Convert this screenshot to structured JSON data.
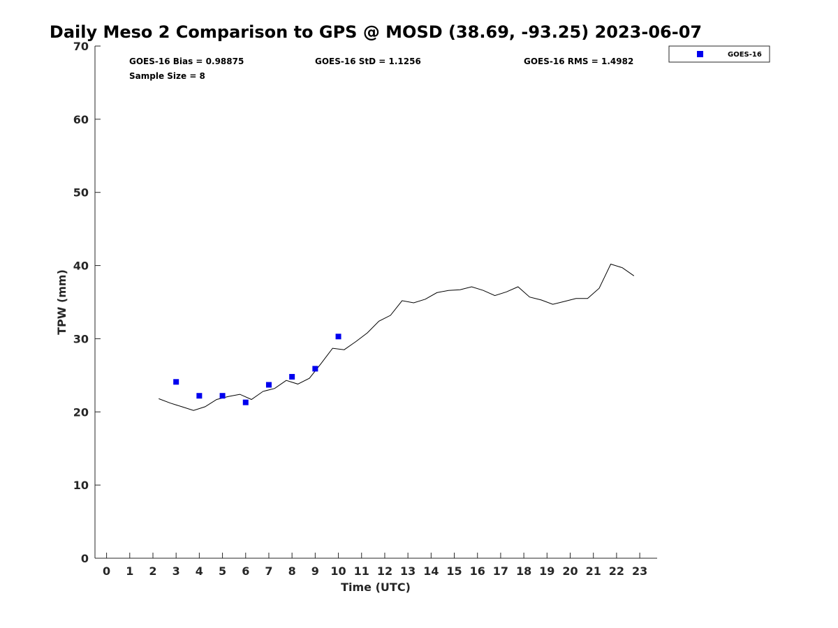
{
  "chart_data": {
    "type": "scatter",
    "title": "Daily Meso 2 Comparison to GPS @ MOSD (38.69, -93.25) 2023-06-07",
    "xlabel": "Time (UTC)",
    "ylabel": "TPW (mm)",
    "xlim": [
      -0.5,
      23.75
    ],
    "ylim": [
      0,
      70
    ],
    "x_ticks": [
      "0",
      "1",
      "2",
      "3",
      "4",
      "5",
      "6",
      "7",
      "8",
      "9",
      "10",
      "11",
      "12",
      "13",
      "14",
      "15",
      "16",
      "17",
      "18",
      "19",
      "20",
      "21",
      "22",
      "23"
    ],
    "y_ticks": [
      "0",
      "10",
      "20",
      "30",
      "40",
      "50",
      "60",
      "70"
    ],
    "grid": false,
    "legend_position": "top-right",
    "stats": {
      "bias": "GOES-16 Bias = 0.98875",
      "std": "GOES-16 StD = 1.1256",
      "rms": "GOES-16 RMS = 1.4982",
      "sample": "Sample Size = 8"
    },
    "series": [
      {
        "name": "GOES-16",
        "kind": "scatter",
        "marker": "square",
        "color": "#0000ee",
        "x": [
          3,
          4,
          5,
          6,
          7,
          8,
          9,
          10
        ],
        "y": [
          24.1,
          22.2,
          22.2,
          21.3,
          23.7,
          24.8,
          25.9,
          30.3
        ]
      },
      {
        "kind": "line",
        "color": "#000000",
        "x": [
          2.25,
          2.75,
          3.25,
          3.75,
          4.25,
          4.75,
          5.25,
          5.75,
          6.25,
          6.75,
          7.25,
          7.75,
          8.25,
          8.75,
          9.25,
          9.75,
          10.25,
          10.75,
          11.25,
          11.75,
          12.25,
          12.75,
          13.25,
          13.75,
          14.25,
          14.75,
          15.25,
          15.75,
          16.25,
          16.75,
          17.25,
          17.75,
          18.25,
          18.75,
          19.25,
          19.75,
          20.25,
          20.75,
          21.25,
          21.75,
          22.25,
          22.75
        ],
        "y": [
          21.8,
          21.2,
          20.7,
          20.2,
          20.7,
          21.7,
          22.1,
          22.4,
          21.7,
          22.8,
          23.2,
          24.3,
          23.8,
          24.6,
          26.6,
          28.7,
          28.5,
          29.6,
          30.8,
          32.4,
          33.2,
          35.2,
          34.9,
          35.4,
          36.3,
          36.6,
          36.7,
          37.1,
          36.6,
          35.9,
          36.4,
          37.1,
          35.7,
          35.3,
          34.7,
          35.1,
          35.5,
          35.5,
          36.9,
          40.2,
          39.7,
          38.6
        ]
      }
    ]
  }
}
